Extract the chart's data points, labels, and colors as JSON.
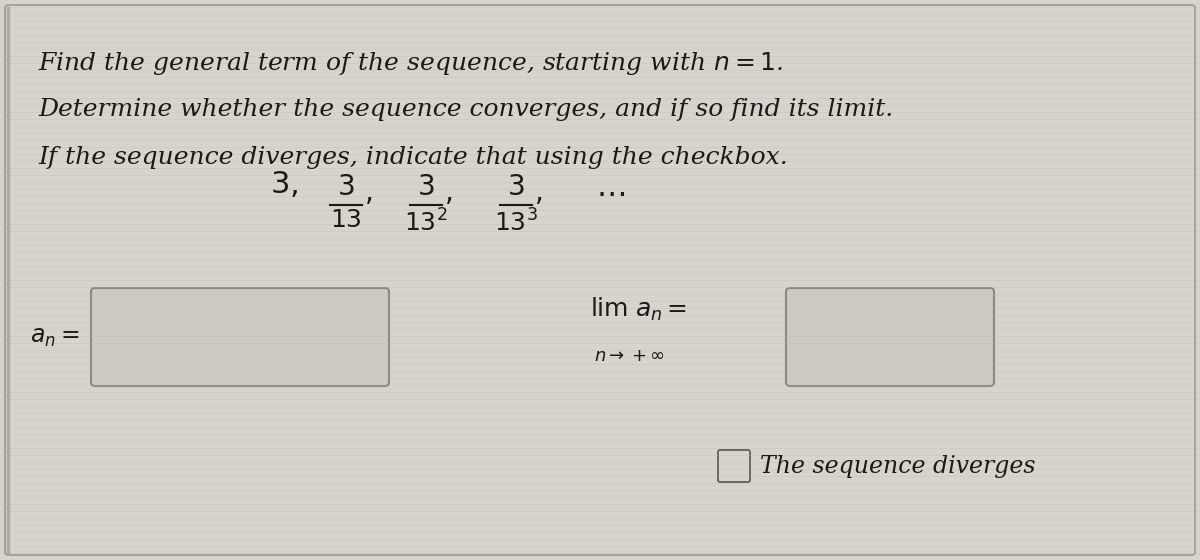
{
  "bg_color": "#d8d4cc",
  "border_color": "#999999",
  "text_color": "#1a1a1a",
  "box_bg_color": "#cccac2",
  "box_edge_color": "#888888",
  "line1": "Find the general term of the sequence, starting with $n = 1$.",
  "line2": "Determine whether the sequence converges, and if so find its limit.",
  "line3": "If the sequence diverges, indicate that using the checkbox.",
  "diverges_label": "The sequence diverges",
  "figsize": [
    12.0,
    5.6
  ],
  "dpi": 100,
  "text_fontsize": 18,
  "seq_fontsize": 22,
  "label_fontsize": 17
}
